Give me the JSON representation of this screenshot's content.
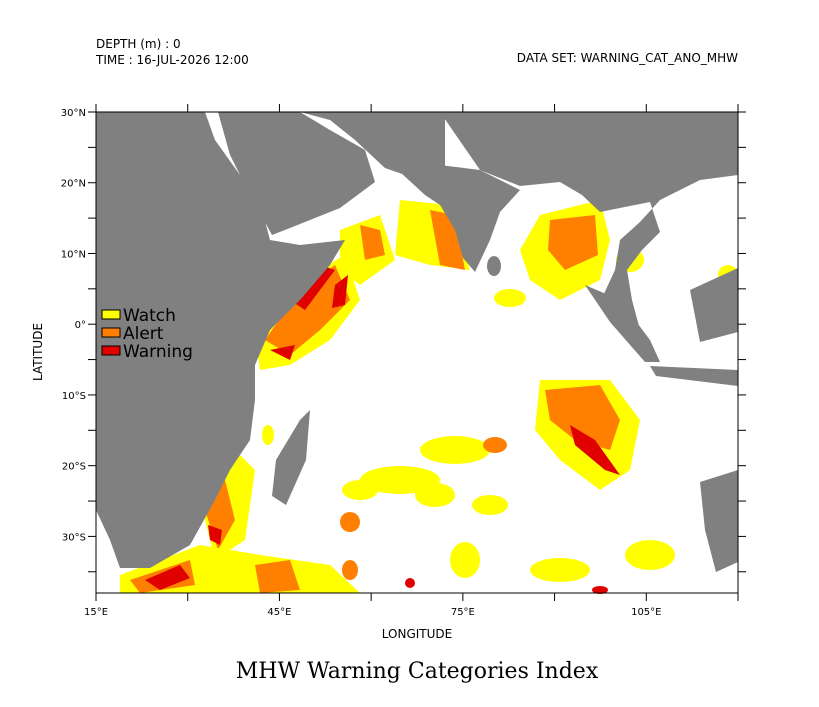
{
  "map": {
    "depth_label": "DEPTH (m) : 0",
    "time_label": "TIME : 16-JUL-2026 12:00",
    "dataset_label": "DATA SET: WARNING_CAT_ANO_MHW",
    "title": "MHW Warning Categories Index",
    "xlabel": "LONGITUDE",
    "ylabel": "LATITUDE",
    "xlim": [
      15,
      120
    ],
    "ylim": [
      -38,
      30
    ],
    "xticks": [
      {
        "value": 15,
        "label": "15°E"
      },
      {
        "value": 45,
        "label": "45°E"
      },
      {
        "value": 75,
        "label": "75°E"
      },
      {
        "value": 105,
        "label": "105°E"
      }
    ],
    "xminorticks": [
      30,
      60,
      90,
      120
    ],
    "yticks": [
      {
        "value": 30,
        "label": "30°N"
      },
      {
        "value": 20,
        "label": "20°N"
      },
      {
        "value": 10,
        "label": "10°N"
      },
      {
        "value": 0,
        "label": "0°"
      },
      {
        "value": -10,
        "label": "10°S"
      },
      {
        "value": -20,
        "label": "20°S"
      },
      {
        "value": -30,
        "label": "30°S"
      }
    ],
    "yminorticks": [
      25,
      15,
      5,
      -5,
      -15,
      -25,
      -35
    ],
    "legend": [
      {
        "name": "Watch",
        "color": "#ffff00"
      },
      {
        "name": "Alert",
        "color": "#ff8000"
      },
      {
        "name": "Warning",
        "color": "#e00000"
      }
    ]
  }
}
